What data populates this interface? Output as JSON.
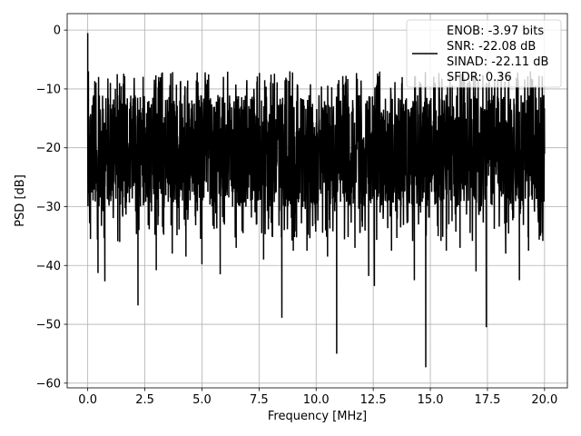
{
  "chart_data": {
    "type": "line",
    "xlabel": "Frequency [MHz]",
    "ylabel": "PSD [dB]",
    "xlim": [
      -0.9,
      21.0
    ],
    "ylim": [
      -60.8,
      2.8
    ],
    "xticks": [
      0.0,
      2.5,
      5.0,
      7.5,
      10.0,
      12.5,
      15.0,
      17.5,
      20.0
    ],
    "xtick_labels": [
      "0.0",
      "2.5",
      "5.0",
      "7.5",
      "10.0",
      "12.5",
      "15.0",
      "17.5",
      "20.0"
    ],
    "yticks": [
      0,
      -10,
      -20,
      -30,
      -40,
      -50,
      -60
    ],
    "ytick_labels": [
      "0",
      "−10",
      "−20",
      "−30",
      "−40",
      "−50",
      "−60"
    ],
    "grid": true,
    "legend": {
      "placement": "upper-right",
      "entries": [
        "ENOB: -3.97 bits",
        "SNR: -22.08 dB",
        "SINAD: -22.11 dB",
        "SFDR: 0.36"
      ]
    },
    "series": [
      {
        "color": "#000000",
        "x_range": [
          0.0,
          20.0
        ],
        "noise_floor": {
          "band_top_db": -10,
          "band_bottom_db": -30,
          "peak_top_db": -7
        },
        "features": [
          {
            "x": 0.0,
            "y": -0.5
          },
          {
            "x": 0.03,
            "y": -7.0
          },
          {
            "x": 0.06,
            "y": -16.0
          },
          {
            "x": 0.12,
            "y": -35.5
          },
          {
            "x": 0.45,
            "y": -41.3
          },
          {
            "x": 0.75,
            "y": -42.7
          },
          {
            "x": 1.4,
            "y": -36.0
          },
          {
            "x": 2.2,
            "y": -46.8
          },
          {
            "x": 3.0,
            "y": -40.8
          },
          {
            "x": 3.7,
            "y": -38.0
          },
          {
            "x": 4.3,
            "y": -38.5
          },
          {
            "x": 5.0,
            "y": -39.8
          },
          {
            "x": 5.8,
            "y": -41.5
          },
          {
            "x": 6.5,
            "y": -37.0
          },
          {
            "x": 7.7,
            "y": -39.0
          },
          {
            "x": 8.5,
            "y": -48.9
          },
          {
            "x": 9.0,
            "y": -37.5
          },
          {
            "x": 9.6,
            "y": -37.5
          },
          {
            "x": 10.5,
            "y": -38.5
          },
          {
            "x": 10.9,
            "y": -55.0
          },
          {
            "x": 11.7,
            "y": -37.0
          },
          {
            "x": 12.3,
            "y": -41.8
          },
          {
            "x": 12.55,
            "y": -43.5
          },
          {
            "x": 13.3,
            "y": -37.5
          },
          {
            "x": 14.3,
            "y": -42.5
          },
          {
            "x": 14.8,
            "y": -57.3
          },
          {
            "x": 15.7,
            "y": -37.5
          },
          {
            "x": 16.3,
            "y": -37.0
          },
          {
            "x": 17.0,
            "y": -41.0
          },
          {
            "x": 17.45,
            "y": -50.5
          },
          {
            "x": 18.3,
            "y": -38.0
          },
          {
            "x": 18.9,
            "y": -42.5
          },
          {
            "x": 19.3,
            "y": -37.5
          },
          {
            "x": 19.9,
            "y": -34.5
          }
        ]
      }
    ]
  }
}
